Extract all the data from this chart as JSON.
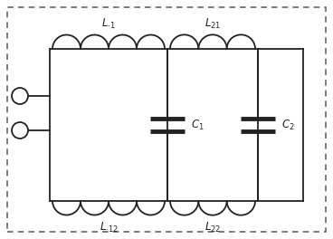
{
  "line_color": "#222222",
  "border_color": "#666666",
  "fig_width": 3.68,
  "fig_height": 2.64,
  "dpi": 100,
  "label_texts": {
    "L11": "$L_{\\cdot 1}$",
    "L21": "$L_{21}$",
    "L12": "$L_{\\cdot 12}$",
    "L22": "$L_{22}$",
    "C1": "$C_1$",
    "C2": "$C_2$"
  }
}
